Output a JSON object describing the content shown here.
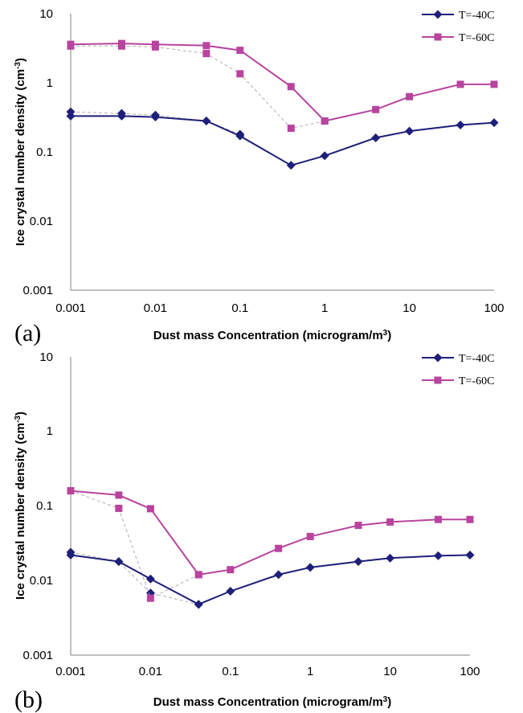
{
  "chart_data": [
    {
      "panel_label": "(a)",
      "type": "line",
      "scale": "log-log",
      "xlabel": "Dust mass Concentration (microgram/m3)",
      "ylabel": "Ice crystal number density (cm-3)",
      "xticks": [
        "0.001",
        "0.01",
        "0.1",
        "1",
        "10",
        "100"
      ],
      "yticks": [
        "0.001",
        "0.01",
        "0.1",
        "1",
        "10"
      ],
      "xlim": [
        0.001,
        100
      ],
      "ylim": [
        0.001,
        10
      ],
      "legend_position": "top-right",
      "series": [
        {
          "name": "T=-40C",
          "color": "#1f1f7a",
          "marker": "diamond",
          "style": "solid",
          "x": [
            0.001,
            0.004,
            0.01,
            0.04,
            0.1,
            0.4,
            1,
            4,
            10,
            40,
            100
          ],
          "y": [
            0.33,
            0.33,
            0.32,
            0.28,
            0.17,
            0.064,
            0.088,
            0.16,
            0.2,
            0.245,
            0.265
          ]
        },
        {
          "name": "T=-60C",
          "color": "#b8449e",
          "marker": "square",
          "style": "solid",
          "x": [
            0.001,
            0.004,
            0.01,
            0.04,
            0.1,
            0.4,
            1,
            4,
            10,
            40,
            100
          ],
          "y": [
            3.6,
            3.7,
            3.6,
            3.45,
            2.95,
            0.88,
            0.28,
            0.41,
            0.63,
            0.95,
            0.95
          ]
        },
        {
          "color": "#1f1f7a",
          "marker": "diamond",
          "style": "dashed",
          "x": [
            0.001,
            0.004,
            0.01,
            0.04,
            0.1
          ],
          "y": [
            0.38,
            0.36,
            0.34,
            0.28,
            0.18
          ]
        },
        {
          "color": "#b8449e",
          "marker": "square",
          "style": "dashed",
          "x": [
            0.001,
            0.004,
            0.01,
            0.04,
            0.1,
            0.4,
            1
          ],
          "y": [
            3.4,
            3.4,
            3.3,
            2.65,
            1.35,
            0.22,
            0.28
          ]
        }
      ]
    },
    {
      "panel_label": "(b)",
      "type": "line",
      "scale": "log-log",
      "xlabel": "Dust mass Concentration (microgram/m3)",
      "ylabel": "Ice crystal number density (cm-3)",
      "xticks": [
        "0.001",
        "0.01",
        "0.1",
        "1",
        "10",
        "100"
      ],
      "yticks": [
        "0.001",
        "0.01",
        "0.1",
        "1",
        "10"
      ],
      "xlim": [
        0.001,
        100
      ],
      "ylim": [
        0.001,
        10
      ],
      "legend_position": "top-right",
      "series": [
        {
          "name": "T=-40C",
          "color": "#1f1f7a",
          "marker": "diamond",
          "style": "solid",
          "x": [
            0.001,
            0.004,
            0.01,
            0.04,
            0.1,
            0.4,
            1,
            4,
            10,
            40,
            100
          ],
          "y": [
            0.022,
            0.018,
            0.0105,
            0.0048,
            0.0072,
            0.012,
            0.015,
            0.018,
            0.02,
            0.0215,
            0.022
          ]
        },
        {
          "name": "T=-60C",
          "color": "#b8449e",
          "marker": "square",
          "style": "solid",
          "x": [
            0.001,
            0.004,
            0.01,
            0.04,
            0.1,
            0.4,
            1,
            4,
            10,
            40,
            100
          ],
          "y": [
            0.16,
            0.14,
            0.092,
            0.012,
            0.014,
            0.027,
            0.039,
            0.055,
            0.061,
            0.066,
            0.066
          ]
        },
        {
          "color": "#1f1f7a",
          "marker": "diamond",
          "style": "dashed",
          "x": [
            0.001,
            0.004,
            0.01,
            0.04
          ],
          "y": [
            0.024,
            0.018,
            0.0068,
            0.0048
          ]
        },
        {
          "color": "#b8449e",
          "marker": "square",
          "style": "dashed",
          "x": [
            0.001,
            0.004,
            0.01,
            0.04
          ],
          "y": [
            0.16,
            0.093,
            0.0058,
            0.012
          ]
        }
      ]
    }
  ]
}
